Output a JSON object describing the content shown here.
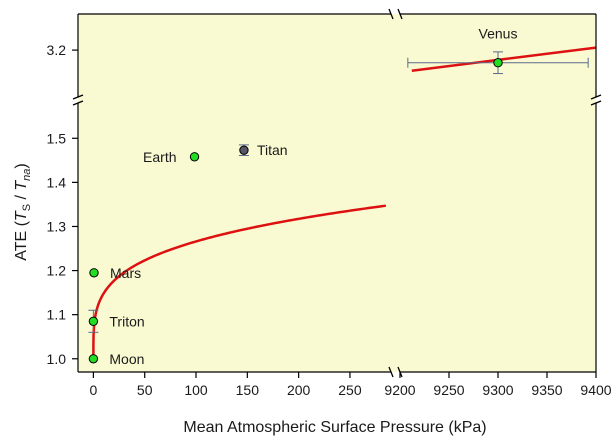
{
  "chart_data": {
    "type": "scatter",
    "xlabel": "Mean Atmospheric Surface Pressure (kPa)",
    "ylabel": {
      "prefix": "ATE  (",
      "t1": "T",
      "s1": "S",
      "sep": " / ",
      "t2": "T",
      "s2": "na",
      "suffix": ")"
    },
    "x_axis_lower": {
      "range": [
        -15,
        290
      ],
      "ticks": [
        0,
        50,
        100,
        150,
        200,
        250
      ],
      "tick_labels": [
        "0",
        "50",
        "100",
        "150",
        "200",
        "250"
      ]
    },
    "x_axis_upper": {
      "range": [
        9200,
        9400
      ],
      "ticks": [
        9200,
        9250,
        9300,
        9350,
        9400
      ],
      "tick_labels": [
        "9200",
        "9250",
        "9300",
        "9350",
        "9400"
      ]
    },
    "y_axis_lower": {
      "range": [
        0.97,
        1.58
      ],
      "ticks": [
        1.0,
        1.1,
        1.2,
        1.3,
        1.4,
        1.5
      ],
      "tick_labels": [
        "1.0",
        "1.1",
        "1.2",
        "1.3",
        "1.4",
        "1.5"
      ]
    },
    "y_axis_upper": {
      "range": [
        3.07,
        3.3
      ],
      "ticks": [
        3.2
      ],
      "tick_labels": [
        "3.2"
      ]
    },
    "points": [
      {
        "label": "Moon",
        "x": 0,
        "y": 1.0,
        "color": "#22dd22"
      },
      {
        "label": "Triton",
        "x": 0.0014,
        "y": 1.085,
        "color": "#22dd22",
        "yerr": 0.025
      },
      {
        "label": "Mars",
        "x": 0.6,
        "y": 1.195,
        "color": "#22dd22"
      },
      {
        "label": "Earth",
        "x": 98.55,
        "y": 1.458,
        "color": "#22dd22"
      },
      {
        "label": "Titan",
        "x": 146.7,
        "y": 1.473,
        "color": "#555566",
        "yerr": 0.012
      },
      {
        "label": "Venus",
        "x": 9300,
        "y": 3.165,
        "color": "#22dd22",
        "xerr": 92,
        "yerr": 0.03
      }
    ],
    "fit_curve_color": "#dd1111",
    "panel_background": "#fafad2",
    "broken_axes": true,
    "grid": false
  }
}
